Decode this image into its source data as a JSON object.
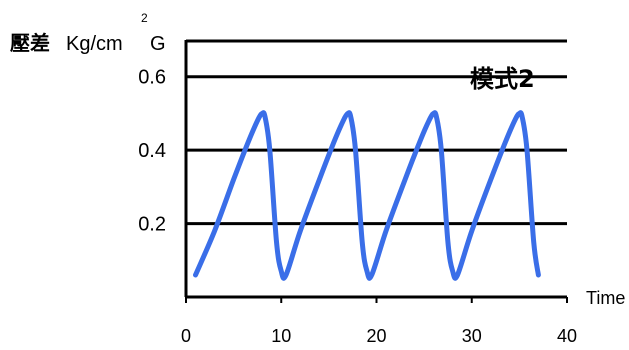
{
  "chart_data": {
    "type": "line",
    "ylabel": {
      "main": "壓差",
      "unit": "Kg/cm",
      "superscript": "2",
      "suffix": "G"
    },
    "xlabel": "Time",
    "annotation": "模式2",
    "xlim": [
      0,
      40
    ],
    "ylim": [
      0,
      0.7
    ],
    "x_ticks": [
      0,
      10,
      20,
      30,
      40
    ],
    "x_tick_labels": [
      "0",
      "10",
      "20",
      "30",
      "40"
    ],
    "y_ticks": [
      0.2,
      0.4,
      0.6
    ],
    "y_tick_labels": [
      "0.2",
      "0.4",
      "0.6"
    ],
    "grid": "horizontal",
    "line_color": "#3a6ee8",
    "series": [
      {
        "x": [
          1,
          3,
          5,
          6.5,
          7.5,
          8,
          8.3,
          8.8,
          9.5,
          10,
          10.5,
          12,
          14,
          15.5,
          16.5,
          17,
          17.3,
          17.8,
          18.5,
          19,
          19.5,
          21,
          23,
          24.5,
          25.5,
          26,
          26.3,
          26.8,
          27.5,
          28,
          28.5,
          30,
          32,
          33.5,
          34.5,
          35,
          35.3,
          35.8,
          36.5,
          37
        ],
        "y": [
          0.06,
          0.18,
          0.32,
          0.42,
          0.48,
          0.5,
          0.49,
          0.4,
          0.15,
          0.07,
          0.06,
          0.18,
          0.32,
          0.42,
          0.48,
          0.5,
          0.49,
          0.4,
          0.15,
          0.07,
          0.06,
          0.18,
          0.32,
          0.42,
          0.48,
          0.5,
          0.49,
          0.4,
          0.15,
          0.07,
          0.06,
          0.18,
          0.32,
          0.42,
          0.48,
          0.5,
          0.49,
          0.4,
          0.15,
          0.06
        ]
      }
    ]
  }
}
